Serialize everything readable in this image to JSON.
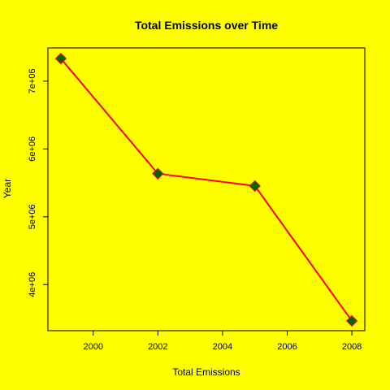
{
  "chart_data": {
    "type": "line",
    "title": "Total Emissions over Time",
    "xlabel": "Total Emissions",
    "ylabel": "Year",
    "x": [
      1999,
      2002,
      2005,
      2008
    ],
    "series": [
      {
        "values": [
          7332967,
          5635780,
          5454703,
          3464206
        ]
      }
    ],
    "xlim": [
      1998.6,
      2008.4
    ],
    "ylim": [
      3320000,
      7490000
    ],
    "x_ticks": [
      2000,
      2002,
      2004,
      2006,
      2008
    ],
    "x_tick_labels": [
      "2000",
      "2002",
      "2004",
      "2006",
      "2008"
    ],
    "y_ticks": [
      4000000,
      5000000,
      6000000,
      7000000
    ],
    "y_tick_labels": [
      "4e+06",
      "5e+06",
      "6e+06",
      "7e+06"
    ],
    "grid": false,
    "legend": "none",
    "colors": {
      "background": "#ffff00",
      "line": "#ff0000",
      "marker": "#006400",
      "axis": "#000000"
    }
  }
}
